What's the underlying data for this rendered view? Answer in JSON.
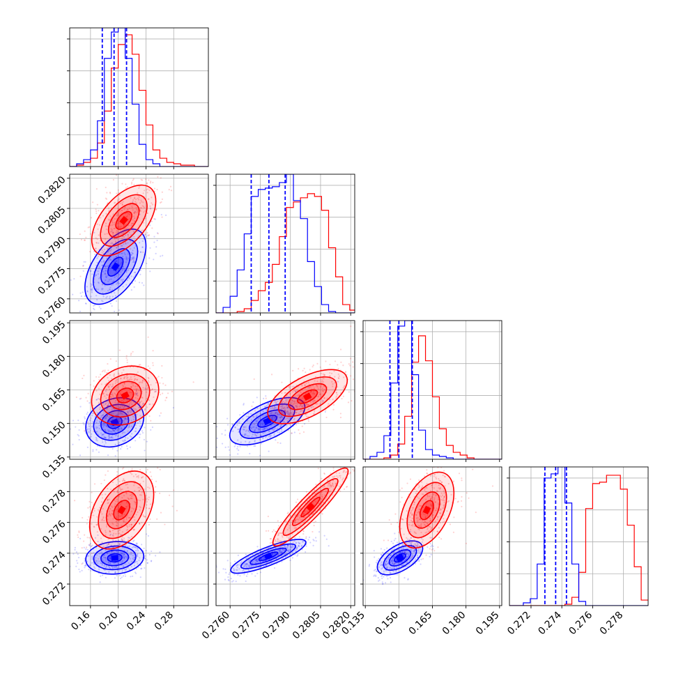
{
  "chart_data": {
    "type": "corner",
    "colors": {
      "series_a": "#0000ff",
      "series_b": "#ff0000"
    },
    "grid": true,
    "parameters": [
      {
        "range": [
          0.13,
          0.33
        ],
        "ticks": [
          "0.16",
          "0.20",
          "0.24",
          "0.28"
        ],
        "tick_values": [
          0.16,
          0.2,
          0.24,
          0.28
        ],
        "quantiles_a": [
          0.177,
          0.194,
          0.212
        ],
        "hist_a": {
          "start": 0.13,
          "step": 0.01,
          "counts": [
            0.0,
            0.02,
            0.05,
            0.12,
            0.33,
            0.78,
            0.97,
            1.0,
            0.78,
            0.45,
            0.16,
            0.05,
            0.02,
            0.0,
            0.0,
            0.0,
            0.0,
            0.0,
            0.0,
            0.0
          ]
        },
        "hist_b": {
          "start": 0.13,
          "step": 0.01,
          "counts": [
            0.0,
            0.01,
            0.03,
            0.06,
            0.17,
            0.4,
            0.71,
            0.88,
            0.95,
            0.81,
            0.55,
            0.3,
            0.12,
            0.06,
            0.03,
            0.02,
            0.01,
            0.01,
            0.0,
            0.0
          ]
        }
      },
      {
        "range": [
          0.2753,
          0.2822
        ],
        "ticks": [
          "0.2760",
          "0.2775",
          "0.2790",
          "0.2805",
          "0.2820"
        ],
        "tick_values": [
          0.276,
          0.2775,
          0.279,
          0.2805,
          0.282
        ],
        "quantiles_a": [
          0.27705,
          0.27793,
          0.27874
        ],
        "hist_a": {
          "start": 0.2753,
          "step": 0.00035,
          "counts": [
            0.0,
            0.04,
            0.12,
            0.31,
            0.57,
            0.84,
            0.89,
            0.9,
            0.91,
            0.94,
            1.0,
            0.81,
            0.68,
            0.37,
            0.19,
            0.06,
            0.01,
            0.0,
            0.0,
            0.0
          ]
        },
        "hist_b": {
          "start": 0.2753,
          "step": 0.00035,
          "counts": [
            0.0,
            0.0,
            0.0,
            0.01,
            0.03,
            0.09,
            0.16,
            0.22,
            0.35,
            0.55,
            0.76,
            0.8,
            0.83,
            0.86,
            0.84,
            0.74,
            0.47,
            0.26,
            0.06,
            0.02
          ]
        }
      },
      {
        "range": [
          0.134,
          0.196
        ],
        "ticks": [
          "0.135",
          "0.150",
          "0.165",
          "0.180",
          "0.195"
        ],
        "tick_values": [
          0.135,
          0.15,
          0.165,
          0.18,
          0.195
        ],
        "quantiles_a": [
          0.146,
          0.15,
          0.156
        ],
        "hist_a": {
          "start": 0.134,
          "step": 0.0031,
          "counts": [
            0.0,
            0.02,
            0.05,
            0.17,
            0.55,
            0.96,
            1.0,
            0.61,
            0.21,
            0.07,
            0.03,
            0.02,
            0.01,
            0.0,
            0.0,
            0.0,
            0.0,
            0.0,
            0.0,
            0.0
          ]
        },
        "hist_b": {
          "start": 0.134,
          "step": 0.0031,
          "counts": [
            0.0,
            0.0,
            0.0,
            0.01,
            0.03,
            0.11,
            0.31,
            0.7,
            0.89,
            0.71,
            0.45,
            0.22,
            0.1,
            0.05,
            0.03,
            0.01,
            0.0,
            0.0,
            0.0,
            0.0
          ]
        }
      },
      {
        "range": [
          0.2706,
          0.2796
        ],
        "ticks": [
          "0.272",
          "0.274",
          "0.276",
          "0.278"
        ],
        "tick_values": [
          0.272,
          0.274,
          0.276,
          0.278
        ],
        "quantiles_a": [
          0.2729,
          0.2736,
          0.2743
        ],
        "hist_a": {
          "start": 0.2706,
          "step": 0.00045,
          "counts": [
            0.0,
            0.0,
            0.02,
            0.05,
            0.3,
            0.92,
            0.95,
            1.0,
            0.74,
            0.3,
            0.03,
            0.0,
            0.0,
            0.0,
            0.0,
            0.0,
            0.0,
            0.0,
            0.0,
            0.0
          ]
        },
        "hist_b": {
          "start": 0.2706,
          "step": 0.00045,
          "counts": [
            0.0,
            0.0,
            0.0,
            0.0,
            0.0,
            0.0,
            0.0,
            0.0,
            0.01,
            0.06,
            0.24,
            0.7,
            0.88,
            0.89,
            0.94,
            0.94,
            0.84,
            0.58,
            0.28,
            0.04
          ]
        }
      }
    ],
    "blobs": {
      "1-0": {
        "a": [
          0.196,
          0.2776,
          0.02,
          0.00085,
          0.55
        ],
        "b": [
          0.208,
          0.2799,
          0.021,
          0.0008,
          0.55
        ]
      },
      "2-0": {
        "a": [
          0.195,
          0.1505,
          0.019,
          0.005,
          0.2
        ],
        "b": [
          0.21,
          0.1625,
          0.022,
          0.006,
          0.2
        ]
      },
      "2-1": {
        "a": [
          0.27785,
          0.151,
          0.00085,
          0.0048,
          0.6
        ],
        "b": [
          0.27985,
          0.162,
          0.0009,
          0.0055,
          0.6
        ]
      },
      "3-0": {
        "a": [
          0.195,
          0.2737,
          0.019,
          0.00048,
          0.1
        ],
        "b": [
          0.205,
          0.2768,
          0.021,
          0.00115,
          0.4
        ]
      },
      "3-1": {
        "a": [
          0.2779,
          0.2738,
          0.00085,
          0.0005,
          0.82
        ],
        "b": [
          0.28,
          0.277,
          0.00085,
          0.00115,
          0.92
        ]
      },
      "3-2": {
        "a": [
          0.1505,
          0.2737,
          0.0046,
          0.0005,
          0.55
        ],
        "b": [
          0.1625,
          0.2768,
          0.0055,
          0.00112,
          0.45
        ]
      }
    }
  }
}
